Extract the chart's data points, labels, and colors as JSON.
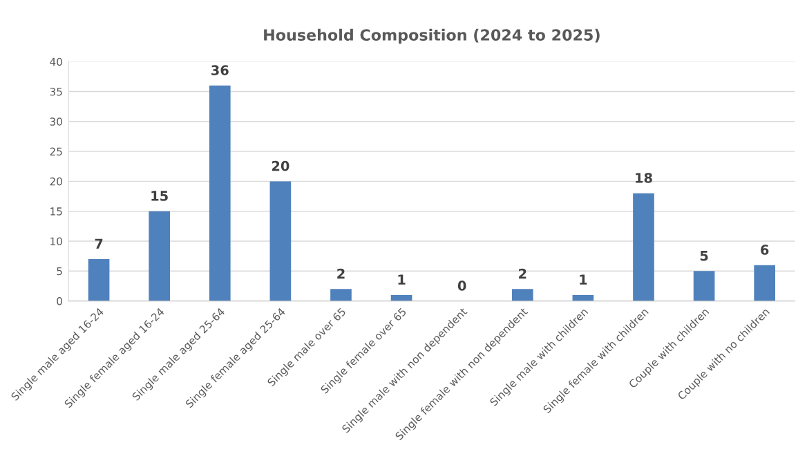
{
  "chart_data": {
    "type": "bar",
    "title": "Household Composition (2024 to 2025)",
    "categories": [
      "Single male aged 16-24",
      "Single female aged 16-24",
      "Single male aged 25-64",
      "Single female aged 25-64",
      "Single male over 65",
      "Single female over 65",
      "Single male with non dependent",
      "Single female with non dependent",
      "Single male with children",
      "Single female with children",
      "Couple with children",
      "Couple with no children"
    ],
    "values": [
      7,
      15,
      36,
      20,
      2,
      1,
      0,
      2,
      1,
      18,
      5,
      6
    ],
    "color": "#4f81bd",
    "ylim": [
      0,
      40
    ],
    "yticks": [
      0,
      5,
      10,
      15,
      20,
      25,
      30,
      35,
      40
    ],
    "grid": "y",
    "data_labels": true
  }
}
